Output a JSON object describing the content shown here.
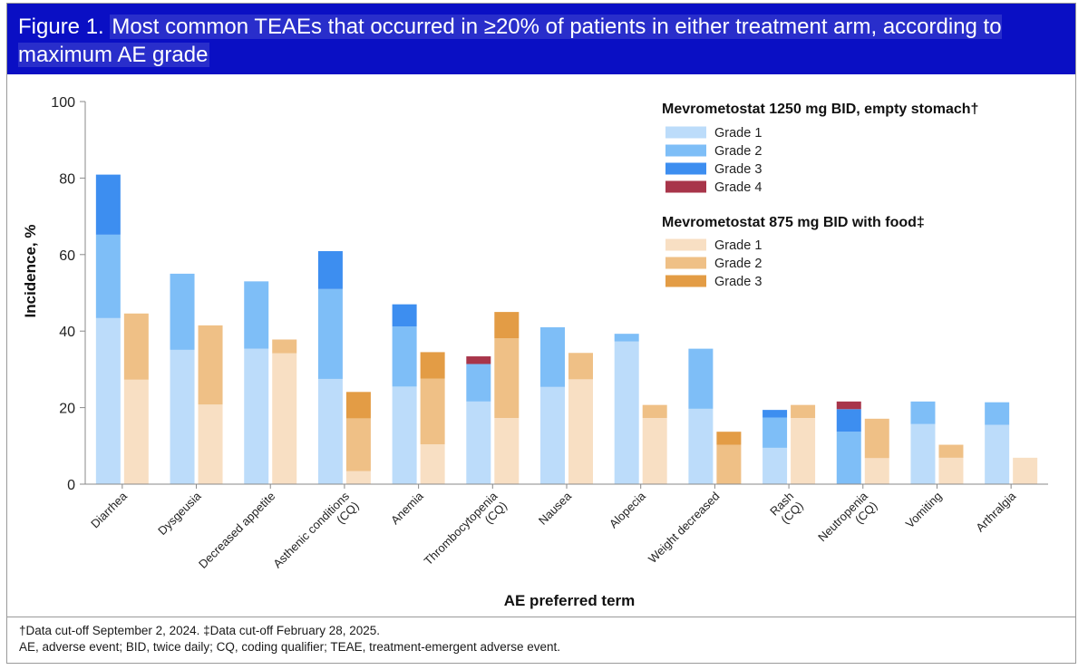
{
  "figure": {
    "label": "Figure 1.",
    "title": "Most common TEAEs that occurred in ≥20% of patients in either treatment arm, according to maximum AE grade"
  },
  "footnotes": {
    "line1": "†Data cut-off September 2, 2024. ‡Data cut-off February 28, 2025.",
    "line2": "AE, adverse event; BID, twice daily; CQ, coding qualifier; TEAE, treatment-emergent adverse event."
  },
  "chart_data": {
    "type": "bar",
    "stacked": true,
    "xlabel": "AE preferred term",
    "ylabel": "Incidence, %",
    "ylim": [
      0,
      100
    ],
    "yticks": [
      0,
      20,
      40,
      60,
      80,
      100
    ],
    "grid": false,
    "legend_position": "top-right",
    "categories": [
      "Diarrhea",
      "Dysgeusia",
      "Decreased appetite",
      "Asthenic conditions (CQ)",
      "Anemia",
      "Thrombocytopenia (CQ)",
      "Nausea",
      "Alopecia",
      "Weight decreased",
      "Rash (CQ)",
      "Neutropenia (CQ)",
      "Vomiting",
      "Arthralgia"
    ],
    "arms": [
      {
        "name": "Mevrometostat 1250 mg BID, empty stomach†",
        "series": [
          {
            "name": "Grade 1",
            "color": "#bcdcfa",
            "values": [
              43.4,
              35.1,
              35.4,
              27.5,
              25.5,
              21.6,
              25.4,
              37.3,
              19.7,
              9.5,
              0,
              15.7,
              15.5
            ]
          },
          {
            "name": "Grade 2",
            "color": "#7ebef7",
            "values": [
              21.8,
              19.9,
              17.6,
              23.5,
              15.7,
              9.8,
              15.6,
              2.0,
              15.7,
              7.9,
              13.7,
              5.9,
              5.9
            ]
          },
          {
            "name": "Grade 3",
            "color": "#3d8ef0",
            "values": [
              15.7,
              0,
              0,
              9.9,
              5.8,
              0,
              0,
              0,
              0,
              2.0,
              5.9,
              0,
              0
            ]
          },
          {
            "name": "Grade 4",
            "color": "#a8354a",
            "values": [
              0,
              0,
              0,
              0,
              0,
              2.0,
              0,
              0,
              0,
              0,
              2.0,
              0,
              0
            ]
          }
        ]
      },
      {
        "name": "Mevrometostat 875 mg BID with food‡",
        "series": [
          {
            "name": "Grade 1",
            "color": "#f8dfc3",
            "values": [
              27.3,
              20.8,
              34.2,
              3.4,
              10.4,
              17.3,
              27.4,
              17.3,
              0,
              17.3,
              6.8,
              6.9,
              6.9
            ]
          },
          {
            "name": "Grade 2",
            "color": "#efc086",
            "values": [
              17.3,
              20.7,
              3.6,
              13.8,
              17.2,
              20.8,
              6.9,
              3.4,
              10.3,
              3.4,
              10.3,
              3.4,
              0
            ]
          },
          {
            "name": "Grade 3",
            "color": "#e39c45",
            "values": [
              0,
              0,
              0,
              6.9,
              6.9,
              6.9,
              0,
              0,
              3.4,
              0,
              0,
              0,
              0
            ]
          }
        ]
      }
    ]
  }
}
